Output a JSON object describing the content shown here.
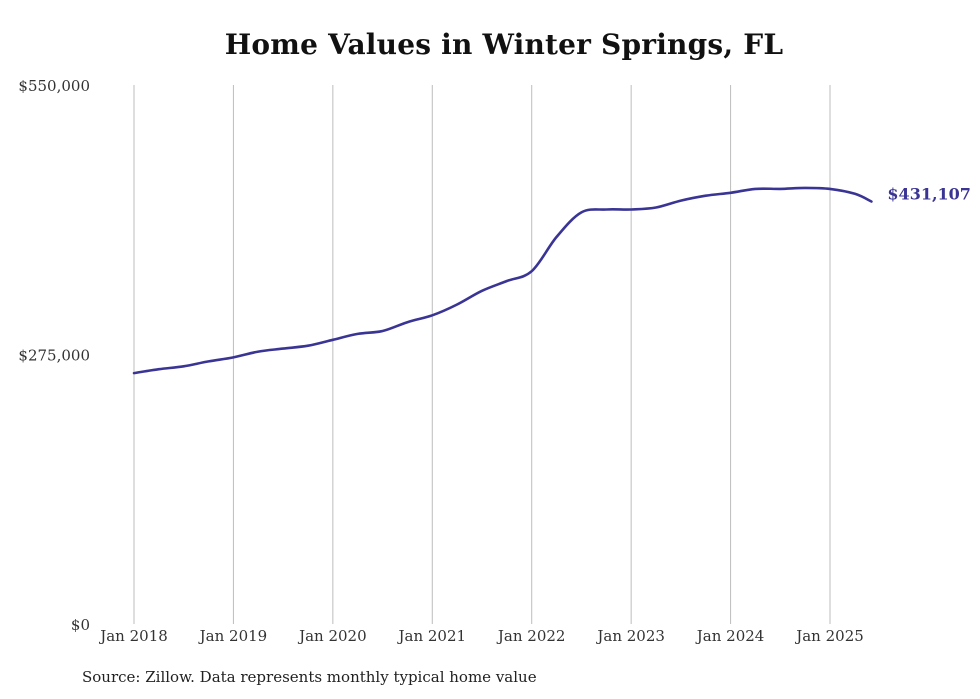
{
  "chart_data": {
    "type": "line",
    "title": "Home Values in Winter Springs, FL",
    "xlabel": "",
    "ylabel": "",
    "source": "Source: Zillow. Data represents monthly typical home value",
    "x_ticks": [
      "Jan 2018",
      "Jan 2019",
      "Jan 2020",
      "Jan 2021",
      "Jan 2022",
      "Jan 2023",
      "Jan 2024",
      "Jan 2025"
    ],
    "y_ticks": [
      {
        "value": 0,
        "label": "$0"
      },
      {
        "value": 275000,
        "label": "$275,000"
      },
      {
        "value": 550000,
        "label": "$550,000"
      }
    ],
    "ylim": [
      0,
      550000
    ],
    "xlim": [
      "2018-01",
      "2025-06"
    ],
    "grid": "vertical",
    "end_label": "$431,107",
    "color": "#3a3594",
    "series": [
      {
        "x": [
          "2018-01",
          "2018-04",
          "2018-07",
          "2018-10",
          "2019-01",
          "2019-04",
          "2019-07",
          "2019-10",
          "2020-01",
          "2020-04",
          "2020-07",
          "2020-10",
          "2021-01",
          "2021-04",
          "2021-07",
          "2021-10",
          "2022-01",
          "2022-04",
          "2022-07",
          "2022-10",
          "2023-01",
          "2023-04",
          "2023-07",
          "2023-10",
          "2024-01",
          "2024-04",
          "2024-07",
          "2024-10",
          "2025-01",
          "2025-04",
          "2025-06"
        ],
        "values": [
          256000,
          260000,
          263000,
          268000,
          272000,
          278000,
          281000,
          284000,
          290000,
          296000,
          299000,
          308000,
          315000,
          326000,
          340000,
          350000,
          360000,
          395000,
          420000,
          423000,
          423000,
          425000,
          432000,
          437000,
          440000,
          444000,
          444000,
          445000,
          444000,
          439000,
          431107
        ]
      }
    ]
  }
}
